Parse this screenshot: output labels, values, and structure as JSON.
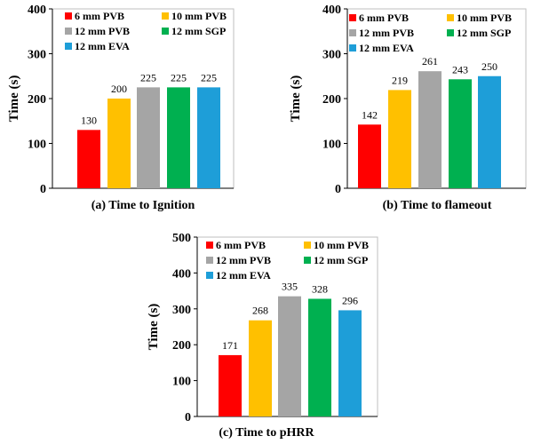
{
  "chart_data": [
    {
      "type": "bar",
      "caption": "(a) Time to Ignition",
      "categories": [
        "6 mm PVB",
        "10 mm PVB",
        "12 mm PVB",
        "12 mm SGP",
        "12 mm EVA"
      ],
      "values": [
        130,
        200,
        225,
        225,
        225
      ],
      "colors": [
        "#ff0000",
        "#ffc000",
        "#a5a5a5",
        "#00b050",
        "#1e9ed8"
      ],
      "ylabel": "Time (s)",
      "xlabel": "",
      "ylim": [
        0,
        400
      ],
      "yticks": [
        0,
        100,
        200,
        300,
        400
      ],
      "grid": false,
      "legend": "top, two columns"
    },
    {
      "type": "bar",
      "caption": "(b) Time to flameout",
      "categories": [
        "6 mm PVB",
        "10 mm PVB",
        "12 mm PVB",
        "12 mm SGP",
        "12 mm EVA"
      ],
      "values": [
        142,
        219,
        261,
        243,
        250
      ],
      "colors": [
        "#ff0000",
        "#ffc000",
        "#a5a5a5",
        "#00b050",
        "#1e9ed8"
      ],
      "ylabel": "Time (s)",
      "xlabel": "",
      "ylim": [
        0,
        400
      ],
      "yticks": [
        0,
        100,
        200,
        300,
        400
      ],
      "grid": false,
      "legend": "top, two columns"
    },
    {
      "type": "bar",
      "caption": "(c) Time to pHRR",
      "categories": [
        "6 mm PVB",
        "10 mm PVB",
        "12 mm PVB",
        "12 mm SGP",
        "12 mm EVA"
      ],
      "values": [
        171,
        268,
        335,
        328,
        296
      ],
      "colors": [
        "#ff0000",
        "#ffc000",
        "#a5a5a5",
        "#00b050",
        "#1e9ed8"
      ],
      "ylabel": "Time (s)",
      "xlabel": "",
      "ylim": [
        0,
        500
      ],
      "yticks": [
        0,
        100,
        200,
        300,
        400,
        500
      ],
      "grid": false,
      "legend": "top, two columns"
    }
  ]
}
